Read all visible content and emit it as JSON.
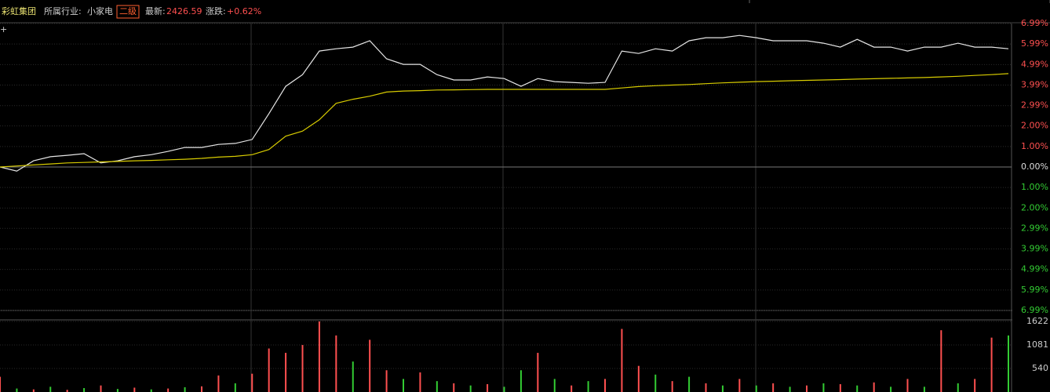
{
  "header": {
    "name": "彩虹集团",
    "industry_label": "所属行业:",
    "industry": "小家电",
    "level": "二级",
    "latest_label": "最新:",
    "latest": "2426.59",
    "change_label": "涨跌:",
    "change": "+0.62%"
  },
  "chart_data": [
    {
      "type": "line",
      "x": [
        0,
        4,
        8,
        12,
        16,
        20,
        24,
        28,
        32,
        36,
        40,
        44,
        48,
        52,
        56,
        60,
        64,
        68,
        72,
        76,
        80,
        84,
        88,
        92,
        96,
        100,
        104,
        108,
        112,
        116,
        120,
        124,
        128,
        132,
        136,
        140,
        144,
        148,
        152,
        156,
        160,
        164,
        168,
        172,
        176,
        180,
        184,
        188,
        192,
        196,
        200,
        204,
        208,
        212,
        216,
        220,
        224,
        228,
        232,
        236,
        240
      ],
      "xlim": [
        0,
        240
      ],
      "ylim": [
        -6.99,
        6.99
      ],
      "yticks": [
        {
          "value": 6.99,
          "label": "6.99%"
        },
        {
          "value": 5.99,
          "label": "5.99%"
        },
        {
          "value": 4.99,
          "label": "4.99%"
        },
        {
          "value": 3.99,
          "label": "3.99%"
        },
        {
          "value": 2.99,
          "label": "2.99%"
        },
        {
          "value": 2.0,
          "label": "2.00%"
        },
        {
          "value": 1.0,
          "label": "1.00%"
        },
        {
          "value": 0,
          "label": "0.00%"
        },
        {
          "value": -1.0,
          "label": "1.00%"
        },
        {
          "value": -2.0,
          "label": "2.00%"
        },
        {
          "value": -2.99,
          "label": "2.99%"
        },
        {
          "value": -3.99,
          "label": "3.99%"
        },
        {
          "value": -4.99,
          "label": "4.99%"
        },
        {
          "value": -5.99,
          "label": "5.99%"
        },
        {
          "value": -6.99,
          "label": "6.99%"
        }
      ],
      "grid": true,
      "series": [
        {
          "color": "#e6e6e6",
          "values": [
            0,
            -0.2,
            0.3,
            0.5,
            0.57,
            0.65,
            0.2,
            0.3,
            0.5,
            0.6,
            0.76,
            0.95,
            0.95,
            1.1,
            1.15,
            1.34,
            2.6,
            3.93,
            4.5,
            5.65,
            5.76,
            5.84,
            6.15,
            5.27,
            5.0,
            5.0,
            4.5,
            4.24,
            4.24,
            4.39,
            4.31,
            3.93,
            4.31,
            4.16,
            4.12,
            4.08,
            4.12,
            5.65,
            5.53,
            5.76,
            5.65,
            6.15,
            6.3,
            6.3,
            6.41,
            6.3,
            6.15,
            6.15,
            6.15,
            6.03,
            5.84,
            6.22,
            5.84,
            5.84,
            5.65,
            5.84,
            5.84,
            6.03,
            5.84,
            5.84,
            5.76
          ]
        },
        {
          "color": "#d8cc00",
          "values": [
            0,
            0.05,
            0.1,
            0.15,
            0.2,
            0.22,
            0.25,
            0.27,
            0.3,
            0.32,
            0.35,
            0.38,
            0.42,
            0.48,
            0.52,
            0.6,
            0.85,
            1.5,
            1.75,
            2.3,
            3.1,
            3.3,
            3.45,
            3.65,
            3.7,
            3.72,
            3.75,
            3.76,
            3.77,
            3.78,
            3.78,
            3.78,
            3.78,
            3.78,
            3.78,
            3.78,
            3.78,
            3.85,
            3.92,
            3.96,
            3.99,
            4.02,
            4.06,
            4.1,
            4.13,
            4.16,
            4.18,
            4.2,
            4.22,
            4.24,
            4.26,
            4.28,
            4.3,
            4.32,
            4.34,
            4.36,
            4.39,
            4.42,
            4.46,
            4.5,
            4.55
          ]
        }
      ]
    },
    {
      "type": "bar",
      "x": [
        0,
        4,
        8,
        12,
        16,
        20,
        24,
        28,
        32,
        36,
        40,
        44,
        48,
        52,
        56,
        60,
        64,
        68,
        72,
        76,
        80,
        84,
        88,
        92,
        96,
        100,
        104,
        108,
        112,
        116,
        120,
        124,
        128,
        132,
        136,
        140,
        144,
        148,
        152,
        156,
        160,
        164,
        168,
        172,
        176,
        180,
        184,
        188,
        192,
        196,
        200,
        204,
        208,
        212,
        216,
        220,
        224,
        228,
        232,
        236,
        240
      ],
      "xlim": [
        0,
        240
      ],
      "ylim": [
        0,
        1622
      ],
      "yticks": [
        1622,
        1081,
        540
      ],
      "values": [
        350,
        80,
        60,
        120,
        50,
        90,
        150,
        70,
        100,
        60,
        80,
        110,
        130,
        380,
        200,
        420,
        1000,
        900,
        1080,
        1622,
        1300,
        700,
        1200,
        500,
        300,
        450,
        250,
        200,
        150,
        180,
        120,
        500,
        900,
        300,
        150,
        250,
        300,
        1450,
        600,
        400,
        250,
        350,
        200,
        150,
        300,
        150,
        200,
        120,
        150,
        200,
        180,
        150,
        220,
        120,
        300,
        120,
        1420,
        200,
        300,
        1250,
        1300
      ],
      "colors": [
        "#ff5050",
        "#33cc33",
        "#ff5050",
        "#33cc33",
        "#ff5050",
        "#33cc33",
        "#ff5050",
        "#33cc33",
        "#ff5050",
        "#33cc33",
        "#ff5050",
        "#33cc33",
        "#ff5050",
        "#ff5050",
        "#33cc33",
        "#ff5050",
        "#ff5050",
        "#ff5050",
        "#ff5050",
        "#ff5050",
        "#ff5050",
        "#33cc33",
        "#ff5050",
        "#ff5050",
        "#33cc33",
        "#ff5050",
        "#33cc33",
        "#ff5050",
        "#33cc33",
        "#ff5050",
        "#33cc33",
        "#33cc33",
        "#ff5050",
        "#33cc33",
        "#ff5050",
        "#33cc33",
        "#ff5050",
        "#ff5050",
        "#ff5050",
        "#33cc33",
        "#ff5050",
        "#33cc33",
        "#ff5050",
        "#33cc33",
        "#ff5050",
        "#33cc33",
        "#ff5050",
        "#33cc33",
        "#ff5050",
        "#33cc33",
        "#ff5050",
        "#33cc33",
        "#ff5050",
        "#33cc33",
        "#ff5050",
        "#33cc33",
        "#ff5050",
        "#33cc33",
        "#ff5050",
        "#ff5050",
        "#33cc33"
      ]
    }
  ]
}
